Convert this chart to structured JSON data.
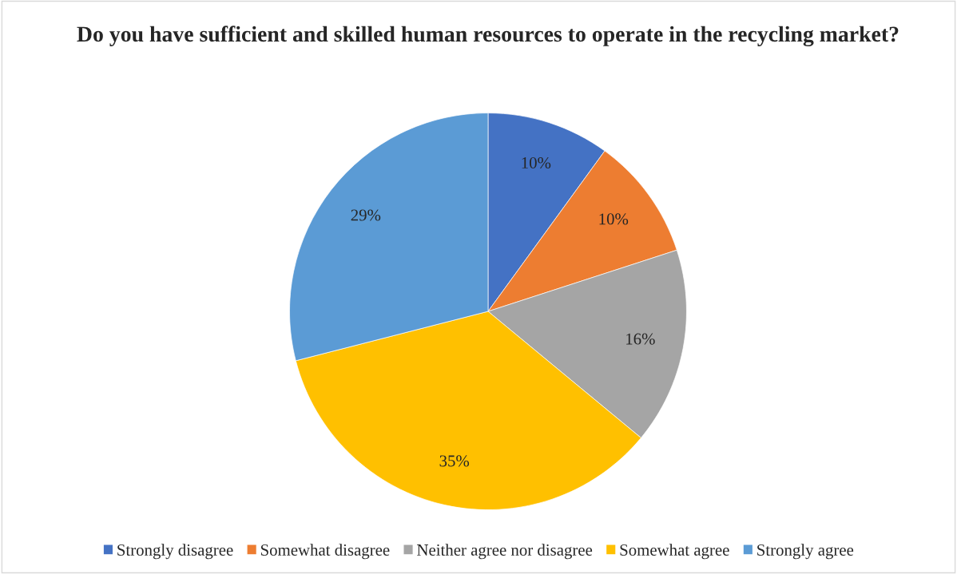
{
  "chart_data": {
    "type": "pie",
    "title": "Do you have sufficient and skilled human resources to operate in the recycling market?",
    "categories": [
      "Strongly disagree",
      "Somewhat disagree",
      "Neither agree nor disagree",
      "Somewhat agree",
      "Strongly agree"
    ],
    "values": [
      10,
      10,
      16,
      35,
      29
    ],
    "colors": [
      "#4472c4",
      "#ed7d31",
      "#a5a5a5",
      "#ffc000",
      "#5b9bd5"
    ],
    "value_labels": [
      "10%",
      "10%",
      "16%",
      "35%",
      "29%"
    ],
    "legend": "bottom"
  }
}
